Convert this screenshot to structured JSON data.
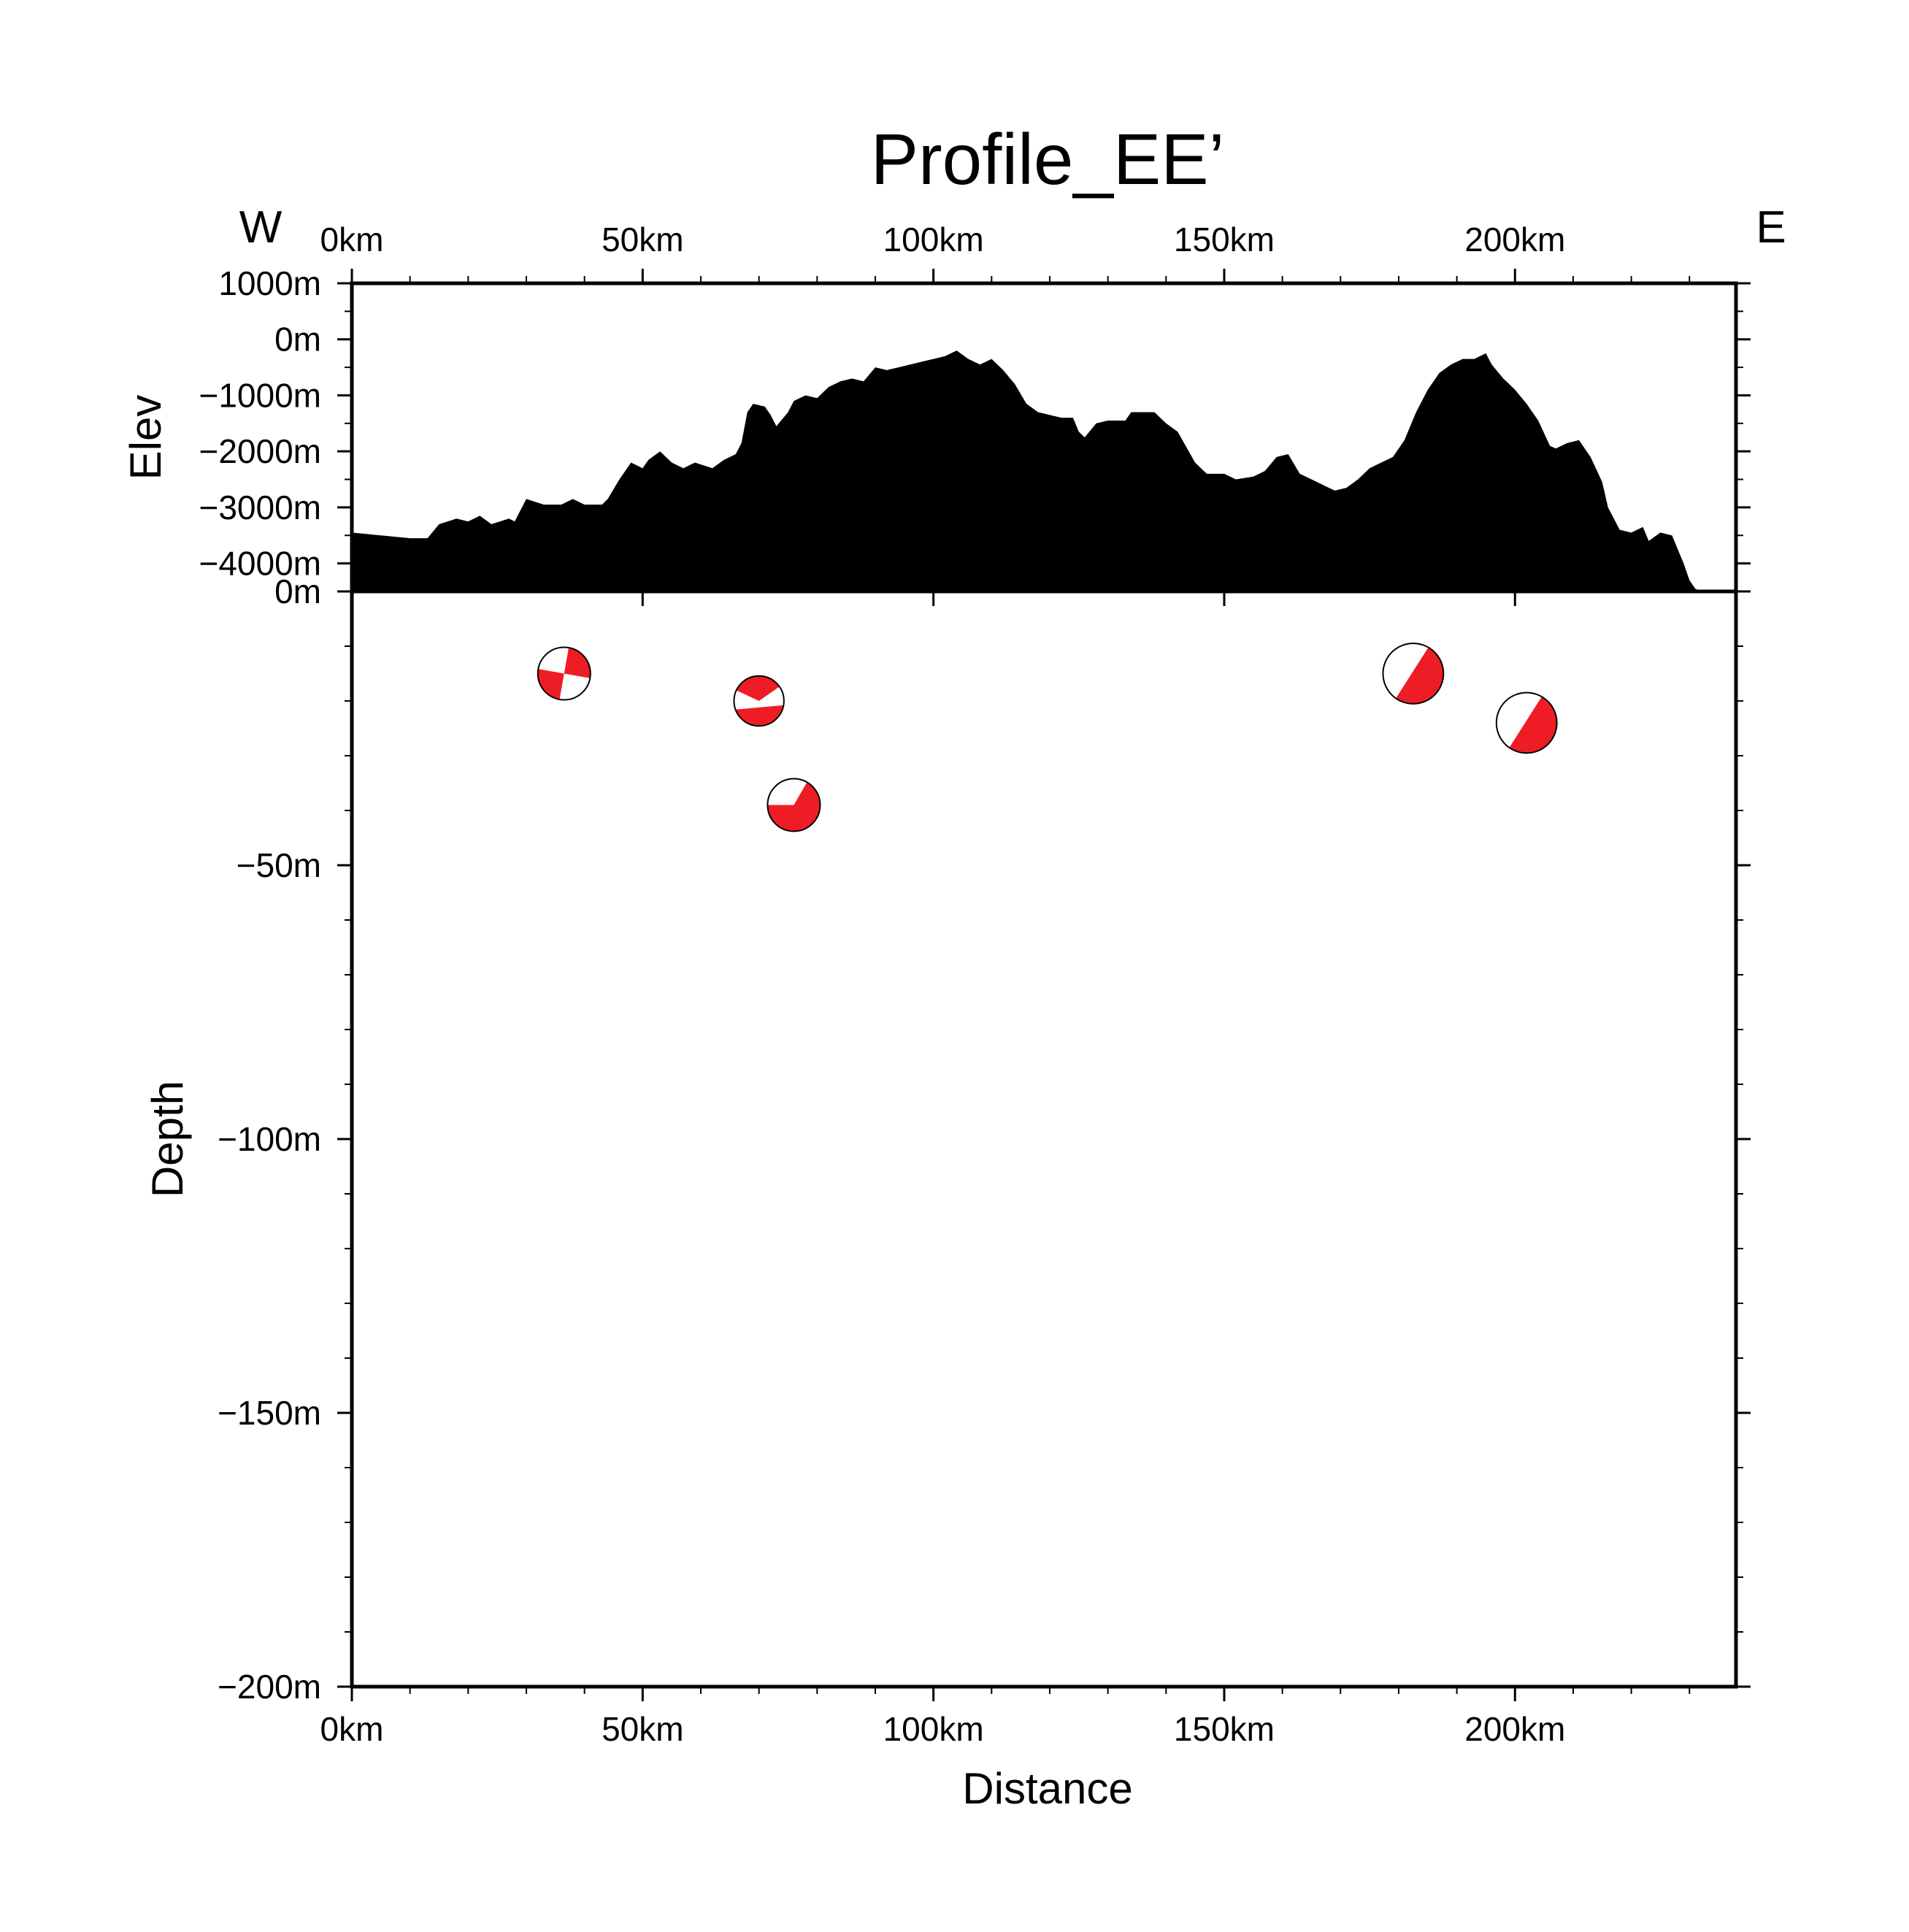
{
  "chart_data": {
    "type": "profile",
    "title": "Profile_EE’",
    "direction_left": "W",
    "direction_right": "E",
    "x_axis": {
      "label": "Distance",
      "range": [
        0,
        238
      ],
      "ticks": [
        0,
        50,
        100,
        150,
        200
      ],
      "tick_labels": [
        "0km",
        "50km",
        "100km",
        "150km",
        "200km"
      ]
    },
    "elevation_panel": {
      "ylabel": "Elev",
      "ylim": [
        -4500,
        1000
      ],
      "ticks": [
        1000,
        0,
        -1000,
        -2000,
        -3000,
        -4000
      ],
      "tick_labels": [
        "1000m",
        "0m",
        "-1000m",
        "-2000m",
        "-3000m",
        "-4000m"
      ],
      "fill_color": "#000000",
      "profile": [
        [
          0,
          -3450
        ],
        [
          5,
          -3500
        ],
        [
          10,
          -3550
        ],
        [
          13,
          -3550
        ],
        [
          15,
          -3300
        ],
        [
          18,
          -3200
        ],
        [
          20,
          -3250
        ],
        [
          22,
          -3150
        ],
        [
          24,
          -3300
        ],
        [
          27,
          -3200
        ],
        [
          28,
          -3250
        ],
        [
          29,
          -3050
        ],
        [
          30,
          -2850
        ],
        [
          33,
          -2950
        ],
        [
          36,
          -2950
        ],
        [
          38,
          -2850
        ],
        [
          40,
          -2950
        ],
        [
          43,
          -2950
        ],
        [
          44,
          -2850
        ],
        [
          46,
          -2500
        ],
        [
          48,
          -2200
        ],
        [
          50,
          -2300
        ],
        [
          51,
          -2150
        ],
        [
          53,
          -2000
        ],
        [
          55,
          -2200
        ],
        [
          57,
          -2300
        ],
        [
          59,
          -2200
        ],
        [
          62,
          -2300
        ],
        [
          64,
          -2150
        ],
        [
          66,
          -2050
        ],
        [
          67,
          -1850
        ],
        [
          68,
          -1300
        ],
        [
          69,
          -1150
        ],
        [
          71,
          -1200
        ],
        [
          72,
          -1350
        ],
        [
          73,
          -1550
        ],
        [
          75,
          -1300
        ],
        [
          76,
          -1100
        ],
        [
          78,
          -1000
        ],
        [
          80,
          -1050
        ],
        [
          82,
          -850
        ],
        [
          84,
          -750
        ],
        [
          86,
          -700
        ],
        [
          88,
          -750
        ],
        [
          90,
          -500
        ],
        [
          92,
          -550
        ],
        [
          94,
          -500
        ],
        [
          96,
          -450
        ],
        [
          98,
          -400
        ],
        [
          100,
          -350
        ],
        [
          102,
          -300
        ],
        [
          104,
          -200
        ],
        [
          106,
          -350
        ],
        [
          108,
          -450
        ],
        [
          110,
          -350
        ],
        [
          112,
          -550
        ],
        [
          114,
          -800
        ],
        [
          116,
          -1150
        ],
        [
          118,
          -1300
        ],
        [
          122,
          -1400
        ],
        [
          124,
          -1400
        ],
        [
          125,
          -1650
        ],
        [
          126,
          -1750
        ],
        [
          128,
          -1500
        ],
        [
          130,
          -1450
        ],
        [
          133,
          -1450
        ],
        [
          134,
          -1300
        ],
        [
          138,
          -1300
        ],
        [
          140,
          -1500
        ],
        [
          142,
          -1650
        ],
        [
          145,
          -2200
        ],
        [
          147,
          -2400
        ],
        [
          150,
          -2400
        ],
        [
          152,
          -2500
        ],
        [
          155,
          -2450
        ],
        [
          157,
          -2350
        ],
        [
          159,
          -2100
        ],
        [
          161,
          -2050
        ],
        [
          163,
          -2400
        ],
        [
          165,
          -2500
        ],
        [
          167,
          -2600
        ],
        [
          169,
          -2700
        ],
        [
          171,
          -2650
        ],
        [
          173,
          -2500
        ],
        [
          175,
          -2300
        ],
        [
          177,
          -2200
        ],
        [
          179,
          -2100
        ],
        [
          181,
          -1800
        ],
        [
          183,
          -1300
        ],
        [
          185,
          -900
        ],
        [
          187,
          -600
        ],
        [
          189,
          -450
        ],
        [
          191,
          -350
        ],
        [
          193,
          -350
        ],
        [
          195,
          -250
        ],
        [
          196,
          -450
        ],
        [
          198,
          -700
        ],
        [
          200,
          -900
        ],
        [
          202,
          -1150
        ],
        [
          204,
          -1450
        ],
        [
          206,
          -1900
        ],
        [
          207,
          -1950
        ],
        [
          209,
          -1850
        ],
        [
          211,
          -1800
        ],
        [
          213,
          -2100
        ],
        [
          215,
          -2550
        ],
        [
          216,
          -3000
        ],
        [
          218,
          -3400
        ],
        [
          220,
          -3450
        ],
        [
          222,
          -3350
        ],
        [
          223,
          -3600
        ],
        [
          225,
          -3450
        ],
        [
          227,
          -3500
        ],
        [
          228,
          -3750
        ],
        [
          229,
          -4000
        ],
        [
          230,
          -4300
        ],
        [
          231,
          -4450
        ],
        [
          232,
          -4500
        ],
        [
          238,
          -4500
        ]
      ]
    },
    "depth_panel": {
      "ylabel": "Depth",
      "ylim": [
        -200,
        0
      ],
      "ticks": [
        0,
        -50,
        -100,
        -150,
        -200
      ],
      "tick_labels": [
        "0m",
        "-50m",
        "-100m",
        "-150m",
        "-200m"
      ],
      "beachball_color": "#ee1c25",
      "mechanisms": [
        {
          "x": 36.5,
          "depth": -15,
          "size": 1.0,
          "style": "strike-slip"
        },
        {
          "x": 70,
          "depth": -20,
          "size": 0.95,
          "style": "oblique"
        },
        {
          "x": 76,
          "depth": -39,
          "size": 1.0,
          "style": "normal"
        },
        {
          "x": 182.5,
          "depth": -15,
          "size": 1.15,
          "style": "dip-slip"
        },
        {
          "x": 202,
          "depth": -24,
          "size": 1.15,
          "style": "dip-slip"
        }
      ]
    }
  }
}
